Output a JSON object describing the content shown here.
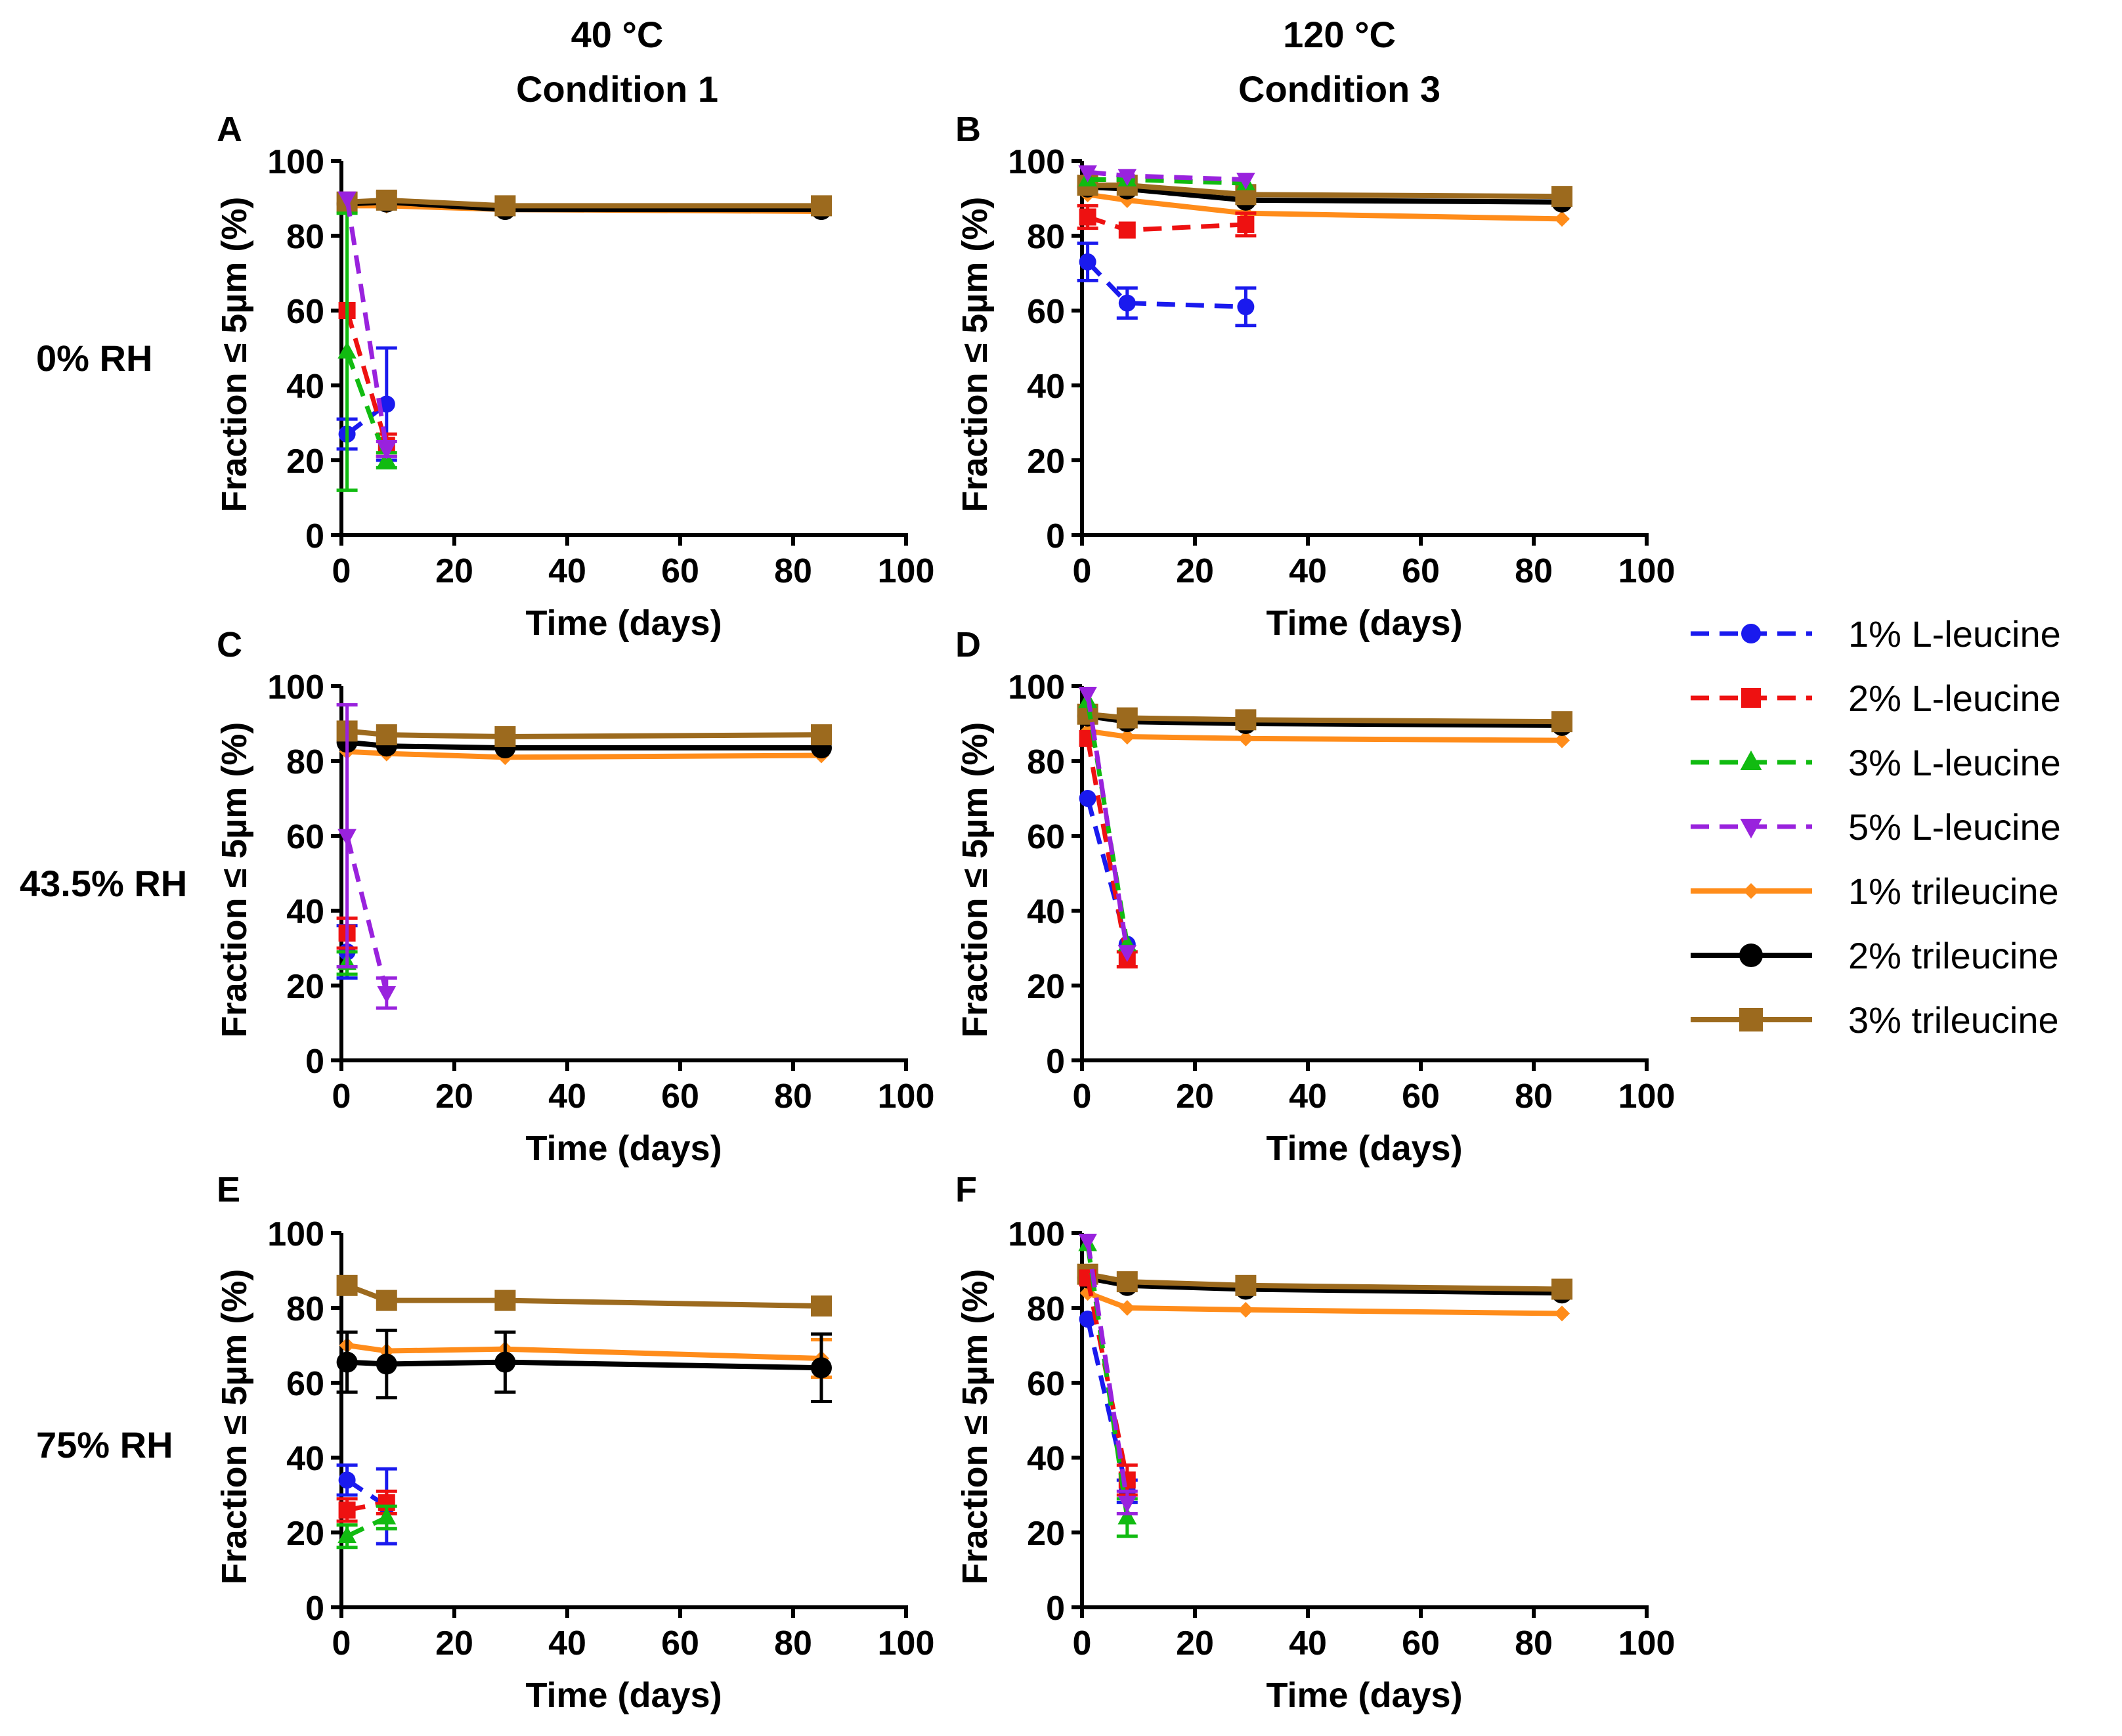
{
  "columns": [
    {
      "temperature": "40 °C",
      "condition": "Condition 1"
    },
    {
      "temperature": "120 °C",
      "condition": "Condition 3"
    }
  ],
  "rows": [
    "0% RH",
    "43.5% RH",
    "75% RH"
  ],
  "legend": [
    {
      "label": "1% L-leucine",
      "color": "#1a1aee",
      "marker": "circle",
      "dash": true
    },
    {
      "label": "2% L-leucine",
      "color": "#ee1111",
      "marker": "square",
      "dash": true
    },
    {
      "label": "3% L-leucine",
      "color": "#11bb11",
      "marker": "triangle",
      "dash": true
    },
    {
      "label": "5% L-leucine",
      "color": "#9922dd",
      "marker": "triangle-down",
      "dash": true
    },
    {
      "label": "1% trileucine",
      "color": "#ff8c1a",
      "marker": "diamond",
      "dash": false
    },
    {
      "label": "2% trileucine",
      "color": "#000000",
      "marker": "circle",
      "dash": false
    },
    {
      "label": "3% trileucine",
      "color": "#9c6a1e",
      "marker": "square",
      "dash": false
    }
  ],
  "chart_data": [
    {
      "panel": "A",
      "type": "line",
      "xlabel": "Time (days)",
      "ylabel": "Fraction ≤ 5µm (%)",
      "xlim": [
        0,
        100
      ],
      "ylim": [
        0,
        100
      ],
      "xticks": [
        0,
        20,
        40,
        60,
        80,
        100
      ],
      "yticks": [
        0,
        20,
        40,
        60,
        80,
        100
      ],
      "series": [
        {
          "name": "1% L-leucine",
          "x": [
            1,
            8
          ],
          "y": [
            27,
            35
          ],
          "err": [
            4,
            15
          ]
        },
        {
          "name": "2% L-leucine",
          "x": [
            1,
            8
          ],
          "y": [
            60,
            24
          ],
          "err": [
            0,
            3
          ]
        },
        {
          "name": "3% L-leucine",
          "x": [
            1,
            8
          ],
          "y": [
            49,
            20
          ],
          "err": [
            37,
            2
          ]
        },
        {
          "name": "5% L-leucine",
          "x": [
            1,
            8
          ],
          "y": [
            90,
            23
          ],
          "err": [
            0,
            2
          ]
        },
        {
          "name": "1% trileucine",
          "x": [
            1,
            8,
            29,
            85
          ],
          "y": [
            88,
            88,
            87,
            86.5
          ],
          "err": [
            0,
            0,
            0,
            0
          ]
        },
        {
          "name": "2% trileucine",
          "x": [
            1,
            8,
            29,
            85
          ],
          "y": [
            88.5,
            89,
            87,
            87
          ],
          "err": [
            0,
            0,
            0,
            0
          ]
        },
        {
          "name": "3% trileucine",
          "x": [
            1,
            8,
            29,
            85
          ],
          "y": [
            89,
            89.5,
            88,
            88
          ],
          "err": [
            0,
            2,
            0,
            0
          ]
        }
      ]
    },
    {
      "panel": "B",
      "type": "line",
      "xlabel": "Time (days)",
      "ylabel": "Fraction ≤ 5µm (%)",
      "xlim": [
        0,
        100
      ],
      "ylim": [
        0,
        100
      ],
      "xticks": [
        0,
        20,
        40,
        60,
        80,
        100
      ],
      "yticks": [
        0,
        20,
        40,
        60,
        80,
        100
      ],
      "series": [
        {
          "name": "1% L-leucine",
          "x": [
            1,
            8,
            29
          ],
          "y": [
            73,
            62,
            61
          ],
          "err": [
            5,
            4,
            5
          ]
        },
        {
          "name": "2% L-leucine",
          "x": [
            1,
            8,
            29
          ],
          "y": [
            85,
            81.5,
            83
          ],
          "err": [
            3,
            0,
            3
          ]
        },
        {
          "name": "3% L-leucine",
          "x": [
            1,
            8,
            29
          ],
          "y": [
            95,
            95,
            94
          ],
          "err": [
            0,
            0,
            0
          ]
        },
        {
          "name": "5% L-leucine",
          "x": [
            1,
            8,
            29
          ],
          "y": [
            97,
            96,
            95
          ],
          "err": [
            0,
            0,
            0
          ]
        },
        {
          "name": "1% trileucine",
          "x": [
            1,
            8,
            29,
            85
          ],
          "y": [
            91,
            89.5,
            86,
            84.5
          ],
          "err": [
            0,
            0,
            0,
            0
          ]
        },
        {
          "name": "2% trileucine",
          "x": [
            1,
            8,
            29,
            85
          ],
          "y": [
            93,
            92.5,
            89.5,
            89
          ],
          "err": [
            0,
            0,
            0,
            0
          ]
        },
        {
          "name": "3% trileucine",
          "x": [
            1,
            8,
            29,
            85
          ],
          "y": [
            93.5,
            93.5,
            91,
            90.5
          ],
          "err": [
            0,
            0,
            0,
            0
          ]
        }
      ]
    },
    {
      "panel": "C",
      "type": "line",
      "xlabel": "Time (days)",
      "ylabel": "Fraction ≤ 5µm (%)",
      "xlim": [
        0,
        100
      ],
      "ylim": [
        0,
        100
      ],
      "xticks": [
        0,
        20,
        40,
        60,
        80,
        100
      ],
      "yticks": [
        0,
        20,
        40,
        60,
        80,
        100
      ],
      "series": [
        {
          "name": "1% L-leucine",
          "x": [
            1
          ],
          "y": [
            29
          ],
          "err": [
            7
          ]
        },
        {
          "name": "2% L-leucine",
          "x": [
            1
          ],
          "y": [
            34
          ],
          "err": [
            4
          ]
        },
        {
          "name": "3% L-leucine",
          "x": [
            1
          ],
          "y": [
            26
          ],
          "err": [
            3
          ]
        },
        {
          "name": "5% L-leucine",
          "x": [
            1,
            8
          ],
          "y": [
            60,
            18
          ],
          "err": [
            35,
            4
          ]
        },
        {
          "name": "1% trileucine",
          "x": [
            1,
            8,
            29,
            85
          ],
          "y": [
            82.5,
            82,
            81,
            81.5
          ],
          "err": [
            0,
            0,
            0,
            0
          ]
        },
        {
          "name": "2% trileucine",
          "x": [
            1,
            8,
            29,
            85
          ],
          "y": [
            85,
            84,
            83.5,
            83.5
          ],
          "err": [
            0,
            0,
            0,
            0
          ]
        },
        {
          "name": "3% trileucine",
          "x": [
            1,
            8,
            29,
            85
          ],
          "y": [
            88,
            87,
            86.5,
            87
          ],
          "err": [
            0,
            0,
            0,
            0
          ]
        }
      ]
    },
    {
      "panel": "D",
      "type": "line",
      "xlabel": "Time (days)",
      "ylabel": "Fraction ≤ 5µm (%)",
      "xlim": [
        0,
        100
      ],
      "ylim": [
        0,
        100
      ],
      "xticks": [
        0,
        20,
        40,
        60,
        80,
        100
      ],
      "yticks": [
        0,
        20,
        40,
        60,
        80,
        100
      ],
      "series": [
        {
          "name": "1% L-leucine",
          "x": [
            1,
            8
          ],
          "y": [
            70,
            31
          ],
          "err": [
            0,
            0
          ]
        },
        {
          "name": "2% L-leucine",
          "x": [
            1,
            8
          ],
          "y": [
            86,
            27
          ],
          "err": [
            0,
            2
          ]
        },
        {
          "name": "3% L-leucine",
          "x": [
            1,
            8
          ],
          "y": [
            96,
            31
          ],
          "err": [
            0,
            0
          ]
        },
        {
          "name": "5% L-leucine",
          "x": [
            1,
            8
          ],
          "y": [
            98,
            29
          ],
          "err": [
            0,
            0
          ]
        },
        {
          "name": "1% trileucine",
          "x": [
            1,
            8,
            29,
            85
          ],
          "y": [
            88,
            86.5,
            86,
            85.5
          ],
          "err": [
            0,
            0,
            0,
            0
          ]
        },
        {
          "name": "2% trileucine",
          "x": [
            1,
            8,
            29,
            85
          ],
          "y": [
            92,
            90.5,
            90,
            89.5
          ],
          "err": [
            0,
            0,
            0,
            0
          ]
        },
        {
          "name": "3% trileucine",
          "x": [
            1,
            8,
            29,
            85
          ],
          "y": [
            92.5,
            91.5,
            91,
            90.5
          ],
          "err": [
            0,
            0,
            0,
            0
          ]
        }
      ]
    },
    {
      "panel": "E",
      "type": "line",
      "xlabel": "Time (days)",
      "ylabel": "Fraction ≤ 5µm (%)",
      "xlim": [
        0,
        100
      ],
      "ylim": [
        0,
        100
      ],
      "xticks": [
        0,
        20,
        40,
        60,
        80,
        100
      ],
      "yticks": [
        0,
        20,
        40,
        60,
        80,
        100
      ],
      "series": [
        {
          "name": "1% L-leucine",
          "x": [
            1,
            8
          ],
          "y": [
            34,
            27
          ],
          "err": [
            4,
            10
          ]
        },
        {
          "name": "2% L-leucine",
          "x": [
            1,
            8
          ],
          "y": [
            26,
            28
          ],
          "err": [
            3,
            3
          ]
        },
        {
          "name": "3% L-leucine",
          "x": [
            1,
            8
          ],
          "y": [
            19,
            24
          ],
          "err": [
            3,
            3
          ]
        },
        {
          "name": "1% trileucine",
          "x": [
            1,
            8,
            29,
            85
          ],
          "y": [
            70,
            68.5,
            69,
            66.5
          ],
          "err": [
            0,
            0,
            0,
            5
          ]
        },
        {
          "name": "2% trileucine",
          "x": [
            1,
            8,
            29,
            85
          ],
          "y": [
            65.5,
            65,
            65.5,
            64
          ],
          "err": [
            8,
            9,
            8,
            9
          ]
        },
        {
          "name": "3% trileucine",
          "x": [
            1,
            8,
            29,
            85
          ],
          "y": [
            86,
            82,
            82,
            80.5
          ],
          "err": [
            0,
            0,
            0,
            0
          ]
        }
      ]
    },
    {
      "panel": "F",
      "type": "line",
      "xlabel": "Time (days)",
      "ylabel": "Fraction ≤ 5µm (%)",
      "xlim": [
        0,
        100
      ],
      "ylim": [
        0,
        100
      ],
      "xticks": [
        0,
        20,
        40,
        60,
        80,
        100
      ],
      "yticks": [
        0,
        20,
        40,
        60,
        80,
        100
      ],
      "series": [
        {
          "name": "1% L-leucine",
          "x": [
            1,
            8
          ],
          "y": [
            77,
            31
          ],
          "err": [
            0,
            3
          ]
        },
        {
          "name": "2% L-leucine",
          "x": [
            1,
            8
          ],
          "y": [
            88,
            34
          ],
          "err": [
            0,
            4
          ]
        },
        {
          "name": "3% L-leucine",
          "x": [
            1,
            8
          ],
          "y": [
            97,
            24
          ],
          "err": [
            0,
            5
          ]
        },
        {
          "name": "5% L-leucine",
          "x": [
            1,
            8
          ],
          "y": [
            98,
            28
          ],
          "err": [
            0,
            3
          ]
        },
        {
          "name": "1% trileucine",
          "x": [
            1,
            8,
            29,
            85
          ],
          "y": [
            84,
            80,
            79.5,
            78.5
          ],
          "err": [
            0,
            0,
            0,
            0
          ]
        },
        {
          "name": "2% trileucine",
          "x": [
            1,
            8,
            29,
            85
          ],
          "y": [
            88,
            86,
            85,
            84
          ],
          "err": [
            0,
            0,
            0,
            0
          ]
        },
        {
          "name": "3% trileucine",
          "x": [
            1,
            8,
            29,
            85
          ],
          "y": [
            89,
            87,
            86,
            85
          ],
          "err": [
            0,
            0,
            0,
            0
          ]
        }
      ]
    }
  ]
}
